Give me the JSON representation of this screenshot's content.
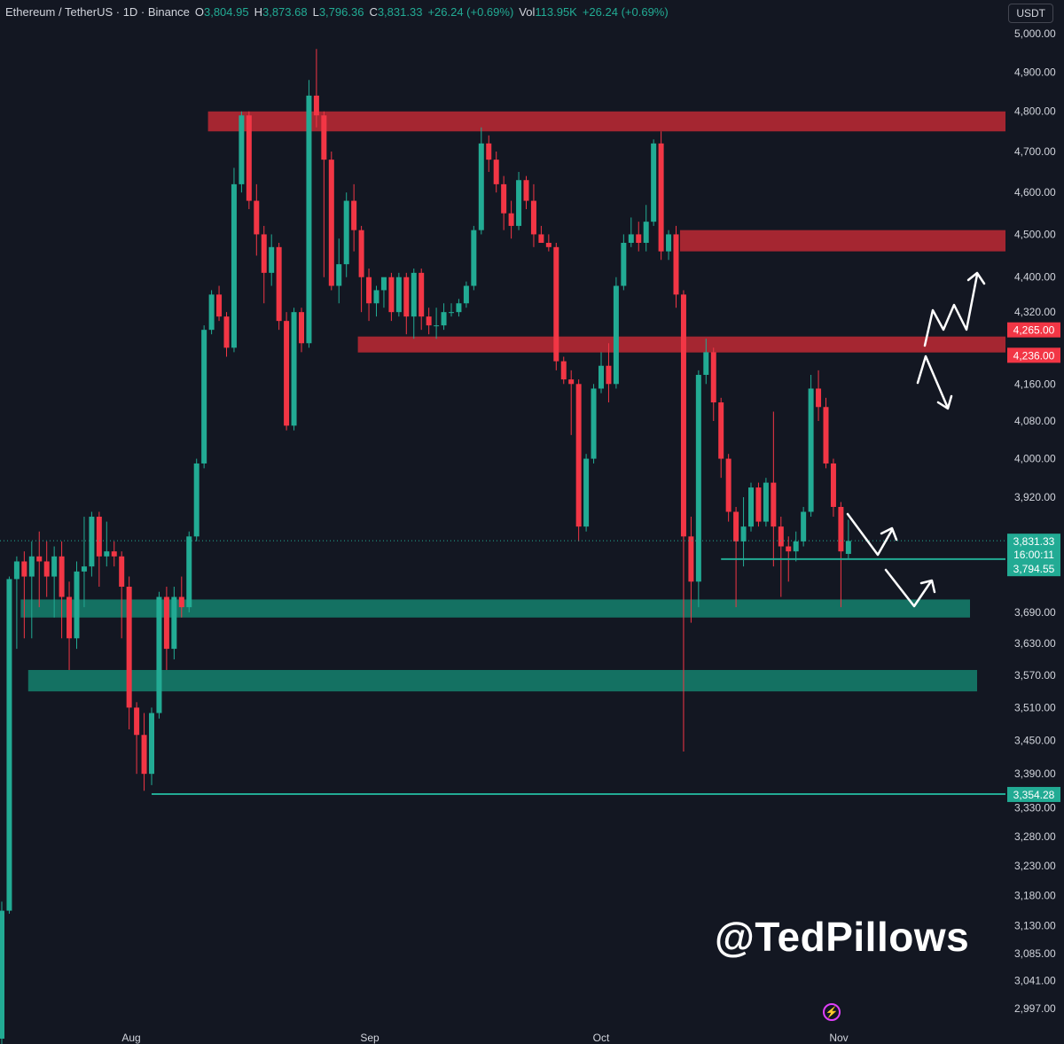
{
  "legend": {
    "title": "Ethereum / TetherUS · 1D · Binance",
    "o_label": "O",
    "o_value": "3,804.95",
    "h_label": "H",
    "h_value": "3,873.68",
    "l_label": "L",
    "l_value": "3,796.36",
    "c_label": "C",
    "c_value": "3,831.33",
    "change": "+26.24 (+0.69%)",
    "vol_label": "Vol",
    "vol_value": "113.95K",
    "vol_change": "+26.24 (+0.69%)"
  },
  "currency_button": "USDT",
  "watermark": "@TedPillows",
  "colors": {
    "background": "#131722",
    "bull": "#22ab94",
    "bear": "#f23645",
    "resistance_zone": "#b22833",
    "support_zone": "#157a68",
    "text": "#d1d4dc"
  },
  "icons": {
    "bolt": "lightning-bolt-icon"
  },
  "chart_data": {
    "type": "candlestick",
    "title": "Ethereum / TetherUS · 1D · Binance",
    "y_scale": "log",
    "ylim": [
      2960,
      5030
    ],
    "y_ticks": [
      "5,000.00",
      "4,900.00",
      "4,800.00",
      "4,700.00",
      "4,600.00",
      "4,500.00",
      "4,400.00",
      "4,320.00",
      "4,160.00",
      "4,080.00",
      "4,000.00",
      "3,920.00",
      "3,690.00",
      "3,630.00",
      "3,570.00",
      "3,510.00",
      "3,450.00",
      "3,390.00",
      "3,330.00",
      "3,280.00",
      "3,230.00",
      "3,180.00",
      "3,130.00",
      "3,085.00",
      "3,041.00",
      "2,997.00"
    ],
    "x_ticks": [
      "Aug",
      "Sep",
      "Oct",
      "Nov"
    ],
    "price_labels": [
      {
        "text": "4,265.00",
        "value": 4265,
        "color": "#f23645"
      },
      {
        "text": "4,236.00",
        "value": 4236,
        "color": "#f23645"
      },
      {
        "text": "3,831.33",
        "value": 3831.33,
        "color": "#22ab94"
      },
      {
        "text": "16:00:11",
        "value": 3812,
        "color": "#22ab94"
      },
      {
        "text": "3,794.55",
        "value": 3794.55,
        "color": "#22ab94"
      },
      {
        "text": "3,354.28",
        "value": 3354.28,
        "color": "#22ab94"
      }
    ],
    "zones": [
      {
        "name": "resistance-top",
        "low": 4750,
        "high": 4800,
        "start_day": 28
      },
      {
        "name": "resistance-mid",
        "low": 4460,
        "high": 4510,
        "start_day": 91
      },
      {
        "name": "resistance-low",
        "low": 4236,
        "high": 4265,
        "start_day": 48
      },
      {
        "name": "support-upper",
        "low": 3680,
        "high": 3715,
        "start_day": 3
      },
      {
        "name": "support-lower",
        "low": 3540,
        "high": 3580,
        "start_day": 4
      }
    ],
    "hlines": [
      {
        "value": 3794.55,
        "start_day": 96
      },
      {
        "value": 3354.28,
        "start_day": 20
      }
    ],
    "candles": [
      [
        2950,
        3155,
        2940,
        3170
      ],
      [
        3155,
        3755,
        3150,
        3760
      ],
      [
        3755,
        3790,
        3620,
        3800
      ],
      [
        3790,
        3760,
        3640,
        3810
      ],
      [
        3760,
        3800,
        3640,
        3830
      ],
      [
        3800,
        3790,
        3700,
        3850
      ],
      [
        3790,
        3760,
        3720,
        3830
      ],
      [
        3760,
        3800,
        3680,
        3820
      ],
      [
        3800,
        3720,
        3640,
        3830
      ],
      [
        3720,
        3640,
        3580,
        3750
      ],
      [
        3640,
        3770,
        3620,
        3790
      ],
      [
        3770,
        3780,
        3700,
        3880
      ],
      [
        3780,
        3880,
        3760,
        3890
      ],
      [
        3880,
        3800,
        3740,
        3890
      ],
      [
        3800,
        3810,
        3780,
        3870
      ],
      [
        3810,
        3800,
        3780,
        3830
      ],
      [
        3800,
        3740,
        3640,
        3810
      ],
      [
        3740,
        3510,
        3470,
        3760
      ],
      [
        3510,
        3460,
        3390,
        3520
      ],
      [
        3460,
        3390,
        3360,
        3500
      ],
      [
        3390,
        3500,
        3370,
        3510
      ],
      [
        3500,
        3720,
        3490,
        3730
      ],
      [
        3720,
        3620,
        3580,
        3740
      ],
      [
        3620,
        3720,
        3600,
        3740
      ],
      [
        3720,
        3700,
        3680,
        3760
      ],
      [
        3700,
        3840,
        3690,
        3850
      ],
      [
        3840,
        3990,
        3830,
        4000
      ],
      [
        3990,
        4280,
        3980,
        4290
      ],
      [
        4280,
        4360,
        4270,
        4370
      ],
      [
        4360,
        4310,
        4300,
        4380
      ],
      [
        4310,
        4240,
        4220,
        4320
      ],
      [
        4240,
        4620,
        4230,
        4660
      ],
      [
        4620,
        4790,
        4600,
        4800
      ],
      [
        4790,
        4580,
        4560,
        4800
      ],
      [
        4580,
        4500,
        4450,
        4620
      ],
      [
        4500,
        4410,
        4340,
        4520
      ],
      [
        4410,
        4470,
        4380,
        4500
      ],
      [
        4470,
        4300,
        4280,
        4480
      ],
      [
        4300,
        4070,
        4060,
        4320
      ],
      [
        4070,
        4320,
        4060,
        4330
      ],
      [
        4320,
        4250,
        4230,
        4330
      ],
      [
        4250,
        4840,
        4240,
        4880
      ],
      [
        4840,
        4790,
        4760,
        4960
      ],
      [
        4790,
        4680,
        4400,
        4800
      ],
      [
        4680,
        4380,
        4370,
        4700
      ],
      [
        4380,
        4430,
        4340,
        4490
      ],
      [
        4430,
        4580,
        4400,
        4600
      ],
      [
        4580,
        4510,
        4460,
        4620
      ],
      [
        4510,
        4400,
        4320,
        4520
      ],
      [
        4400,
        4340,
        4300,
        4420
      ],
      [
        4340,
        4370,
        4310,
        4380
      ],
      [
        4370,
        4400,
        4330,
        4390
      ],
      [
        4400,
        4320,
        4300,
        4410
      ],
      [
        4320,
        4400,
        4310,
        4410
      ],
      [
        4400,
        4310,
        4270,
        4410
      ],
      [
        4310,
        4410,
        4260,
        4420
      ],
      [
        4410,
        4310,
        4280,
        4420
      ],
      [
        4310,
        4290,
        4270,
        4330
      ],
      [
        4290,
        4290,
        4260,
        4330
      ],
      [
        4290,
        4320,
        4280,
        4340
      ],
      [
        4320,
        4320,
        4310,
        4340
      ],
      [
        4320,
        4340,
        4310,
        4350
      ],
      [
        4340,
        4380,
        4330,
        4390
      ],
      [
        4380,
        4510,
        4370,
        4520
      ],
      [
        4510,
        4720,
        4500,
        4760
      ],
      [
        4720,
        4680,
        4650,
        4740
      ],
      [
        4680,
        4620,
        4600,
        4700
      ],
      [
        4620,
        4550,
        4510,
        4640
      ],
      [
        4550,
        4520,
        4490,
        4580
      ],
      [
        4520,
        4630,
        4510,
        4650
      ],
      [
        4630,
        4580,
        4560,
        4640
      ],
      [
        4580,
        4500,
        4470,
        4620
      ],
      [
        4500,
        4480,
        4480,
        4520
      ],
      [
        4480,
        4470,
        4460,
        4500
      ],
      [
        4470,
        4210,
        4190,
        4480
      ],
      [
        4210,
        4170,
        4160,
        4220
      ],
      [
        4170,
        4160,
        4050,
        4190
      ],
      [
        4160,
        3860,
        3830,
        4170
      ],
      [
        3860,
        4000,
        3850,
        4010
      ],
      [
        4000,
        4150,
        3990,
        4160
      ],
      [
        4150,
        4200,
        4140,
        4230
      ],
      [
        4200,
        4160,
        4120,
        4250
      ],
      [
        4160,
        4380,
        4150,
        4400
      ],
      [
        4380,
        4480,
        4370,
        4500
      ],
      [
        4480,
        4500,
        4470,
        4540
      ],
      [
        4500,
        4480,
        4460,
        4530
      ],
      [
        4480,
        4530,
        4460,
        4570
      ],
      [
        4530,
        4720,
        4520,
        4730
      ],
      [
        4720,
        4460,
        4440,
        4750
      ],
      [
        4460,
        4500,
        4440,
        4510
      ],
      [
        4500,
        4360,
        4330,
        4520
      ],
      [
        4360,
        3840,
        3430,
        4370
      ],
      [
        3840,
        3750,
        3670,
        3880
      ],
      [
        3750,
        4180,
        3700,
        4190
      ],
      [
        4180,
        4230,
        4160,
        4260
      ],
      [
        4230,
        4120,
        4080,
        4240
      ],
      [
        4120,
        4000,
        3960,
        4130
      ],
      [
        4000,
        3890,
        3870,
        4010
      ],
      [
        3890,
        3830,
        3700,
        3900
      ],
      [
        3830,
        3860,
        3780,
        3920
      ],
      [
        3860,
        3940,
        3850,
        3950
      ],
      [
        3940,
        3870,
        3860,
        3950
      ],
      [
        3870,
        3950,
        3860,
        3960
      ],
      [
        3950,
        3860,
        3780,
        4100
      ],
      [
        3860,
        3820,
        3720,
        3880
      ],
      [
        3820,
        3810,
        3750,
        3840
      ],
      [
        3810,
        3830,
        3790,
        3850
      ],
      [
        3830,
        3890,
        3820,
        3900
      ],
      [
        3890,
        4150,
        3880,
        4180
      ],
      [
        4150,
        4110,
        4080,
        4190
      ],
      [
        4110,
        3990,
        3980,
        4130
      ],
      [
        3990,
        3900,
        3880,
        4000
      ],
      [
        3900,
        3810,
        3700,
        3910
      ],
      [
        3805,
        3831,
        3796,
        3874
      ]
    ]
  }
}
